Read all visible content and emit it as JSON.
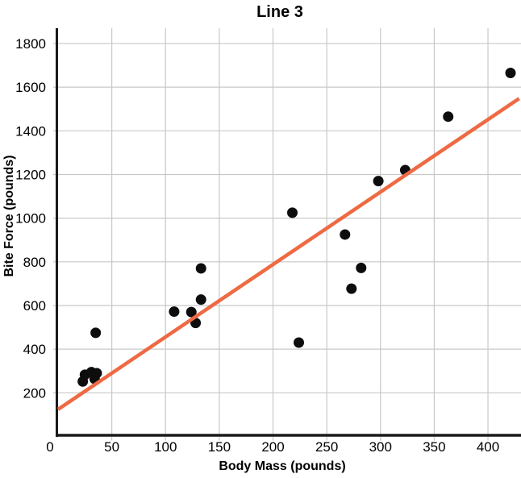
{
  "chart_data": {
    "type": "scatter",
    "title": "Line 3",
    "xlabel": "Body Mass (pounds)",
    "ylabel": "Bite Force (pounds)",
    "xlim": [
      0,
      430
    ],
    "ylim": [
      0,
      1870
    ],
    "xticks": [
      0,
      50,
      100,
      150,
      200,
      250,
      300,
      350,
      400
    ],
    "yticks": [
      200,
      400,
      600,
      800,
      1000,
      1200,
      1400,
      1600,
      1800
    ],
    "grid": true,
    "legend": "none",
    "points": [
      [
        23,
        252
      ],
      [
        25,
        283
      ],
      [
        31,
        295
      ],
      [
        36,
        290
      ],
      [
        34,
        264
      ],
      [
        35,
        475
      ],
      [
        108,
        572
      ],
      [
        124,
        570
      ],
      [
        128,
        520
      ],
      [
        133,
        627
      ],
      [
        133,
        770
      ],
      [
        218,
        1025
      ],
      [
        224,
        430
      ],
      [
        267,
        925
      ],
      [
        273,
        677
      ],
      [
        282,
        772
      ],
      [
        298,
        1170
      ],
      [
        323,
        1220
      ],
      [
        363,
        1465
      ],
      [
        421,
        1665
      ]
    ],
    "trend_line": {
      "x1": 0,
      "y1": 124,
      "x2": 429,
      "y2": 1548
    },
    "colors": {
      "point": "#0d0d0d",
      "trend": "#EE6A43",
      "grid": "#c8c8c8",
      "axis": "#1a1a1a",
      "text": "#000000"
    }
  }
}
